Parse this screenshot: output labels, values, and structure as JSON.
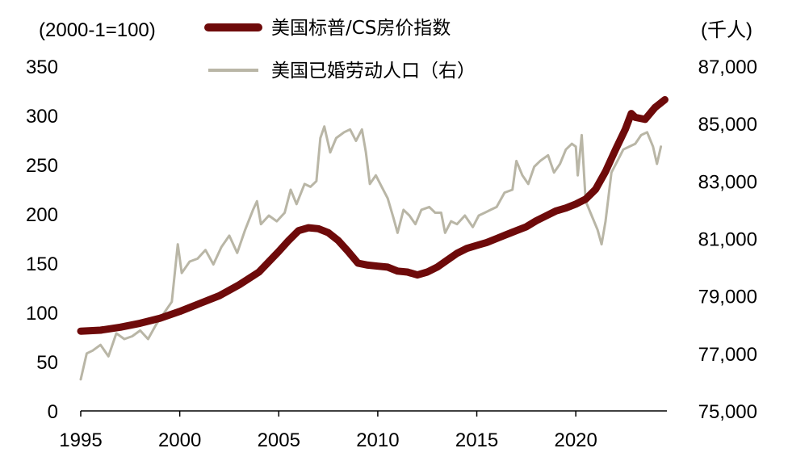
{
  "chart_data": {
    "type": "line",
    "title": "",
    "left_axis_unit": "(2000-1=100)",
    "right_axis_unit": "(千人)",
    "xlim": [
      1995,
      2024.6
    ],
    "ylim_left": [
      0,
      350
    ],
    "ylim_right": [
      75000,
      87000
    ],
    "x_ticks": [
      1995,
      2000,
      2005,
      2010,
      2015,
      2020
    ],
    "x_tick_labels": [
      "1995",
      "2000",
      "2005",
      "2010",
      "2015",
      "2020"
    ],
    "y_left_ticks": [
      0,
      50,
      100,
      150,
      200,
      250,
      300,
      350
    ],
    "y_left_tick_labels": [
      "0",
      "50",
      "100",
      "150",
      "200",
      "250",
      "300",
      "350"
    ],
    "y_right_ticks": [
      75000,
      77000,
      79000,
      81000,
      83000,
      85000,
      87000
    ],
    "y_right_tick_labels": [
      "75,000",
      "77,000",
      "79,000",
      "81,000",
      "83,000",
      "85,000",
      "87,000"
    ],
    "legend_placement": "top-center",
    "series": [
      {
        "name": "美国标普/CS房价指数",
        "axis": "left",
        "color": "#6e0a0a",
        "points": [
          [
            1995.0,
            81
          ],
          [
            1996.0,
            82
          ],
          [
            1997.0,
            85
          ],
          [
            1998.0,
            89
          ],
          [
            1999.0,
            94
          ],
          [
            2000.0,
            101
          ],
          [
            2001.0,
            109
          ],
          [
            2002.0,
            117
          ],
          [
            2003.0,
            128
          ],
          [
            2004.0,
            141
          ],
          [
            2005.0,
            162
          ],
          [
            2005.5,
            173
          ],
          [
            2006.0,
            183
          ],
          [
            2006.5,
            186
          ],
          [
            2007.0,
            185
          ],
          [
            2007.5,
            181
          ],
          [
            2008.0,
            173
          ],
          [
            2008.5,
            162
          ],
          [
            2009.0,
            150
          ],
          [
            2009.5,
            148
          ],
          [
            2010.0,
            147
          ],
          [
            2010.5,
            146
          ],
          [
            2011.0,
            142
          ],
          [
            2011.5,
            141
          ],
          [
            2012.0,
            138
          ],
          [
            2012.5,
            141
          ],
          [
            2013.0,
            146
          ],
          [
            2013.5,
            153
          ],
          [
            2014.0,
            160
          ],
          [
            2014.5,
            165
          ],
          [
            2015.0,
            168
          ],
          [
            2015.5,
            171
          ],
          [
            2016.0,
            175
          ],
          [
            2016.5,
            179
          ],
          [
            2017.0,
            183
          ],
          [
            2017.5,
            187
          ],
          [
            2018.0,
            193
          ],
          [
            2018.5,
            198
          ],
          [
            2019.0,
            203
          ],
          [
            2019.5,
            206
          ],
          [
            2020.0,
            210
          ],
          [
            2020.5,
            215
          ],
          [
            2021.0,
            225
          ],
          [
            2021.5,
            243
          ],
          [
            2022.0,
            265
          ],
          [
            2022.5,
            286
          ],
          [
            2022.8,
            302
          ],
          [
            2023.0,
            298
          ],
          [
            2023.5,
            296
          ],
          [
            2024.0,
            308
          ],
          [
            2024.5,
            316
          ]
        ]
      },
      {
        "name": "美国已婚劳动人口（右）",
        "axis": "right",
        "color": "#b9b6a6",
        "points": [
          [
            1995.0,
            76100
          ],
          [
            1995.3,
            77000
          ],
          [
            1995.6,
            77100
          ],
          [
            1996.0,
            77300
          ],
          [
            1996.4,
            76900
          ],
          [
            1996.8,
            77700
          ],
          [
            1997.2,
            77500
          ],
          [
            1997.6,
            77600
          ],
          [
            1998.0,
            77800
          ],
          [
            1998.4,
            77500
          ],
          [
            1998.8,
            78000
          ],
          [
            1999.2,
            78400
          ],
          [
            1999.6,
            78800
          ],
          [
            1999.9,
            80800
          ],
          [
            2000.1,
            79800
          ],
          [
            2000.5,
            80200
          ],
          [
            2000.9,
            80300
          ],
          [
            2001.3,
            80600
          ],
          [
            2001.7,
            80100
          ],
          [
            2002.1,
            80700
          ],
          [
            2002.5,
            81100
          ],
          [
            2002.9,
            80500
          ],
          [
            2003.3,
            81300
          ],
          [
            2003.7,
            82000
          ],
          [
            2003.9,
            82300
          ],
          [
            2004.1,
            81500
          ],
          [
            2004.5,
            81800
          ],
          [
            2004.9,
            81600
          ],
          [
            2005.3,
            81900
          ],
          [
            2005.6,
            82700
          ],
          [
            2005.9,
            82200
          ],
          [
            2006.3,
            82900
          ],
          [
            2006.6,
            82800
          ],
          [
            2006.9,
            83000
          ],
          [
            2007.1,
            84500
          ],
          [
            2007.3,
            84900
          ],
          [
            2007.6,
            84000
          ],
          [
            2007.9,
            84500
          ],
          [
            2008.3,
            84700
          ],
          [
            2008.6,
            84800
          ],
          [
            2008.9,
            84400
          ],
          [
            2009.2,
            84800
          ],
          [
            2009.4,
            84000
          ],
          [
            2009.6,
            82900
          ],
          [
            2009.9,
            83200
          ],
          [
            2010.2,
            82800
          ],
          [
            2010.5,
            82400
          ],
          [
            2010.8,
            81700
          ],
          [
            2011.0,
            81200
          ],
          [
            2011.3,
            82000
          ],
          [
            2011.6,
            81800
          ],
          [
            2011.9,
            81500
          ],
          [
            2012.2,
            82000
          ],
          [
            2012.6,
            82100
          ],
          [
            2012.9,
            81900
          ],
          [
            2013.2,
            81900
          ],
          [
            2013.4,
            81200
          ],
          [
            2013.7,
            81600
          ],
          [
            2014.0,
            81500
          ],
          [
            2014.4,
            81800
          ],
          [
            2014.8,
            81400
          ],
          [
            2015.1,
            81800
          ],
          [
            2015.4,
            81900
          ],
          [
            2015.7,
            82000
          ],
          [
            2016.0,
            82100
          ],
          [
            2016.4,
            82600
          ],
          [
            2016.8,
            82700
          ],
          [
            2017.0,
            83700
          ],
          [
            2017.3,
            83200
          ],
          [
            2017.6,
            82900
          ],
          [
            2017.9,
            83500
          ],
          [
            2018.2,
            83700
          ],
          [
            2018.6,
            83900
          ],
          [
            2018.9,
            83300
          ],
          [
            2019.2,
            83600
          ],
          [
            2019.5,
            84100
          ],
          [
            2019.8,
            84300
          ],
          [
            2020.0,
            84200
          ],
          [
            2020.1,
            83200
          ],
          [
            2020.3,
            84600
          ],
          [
            2020.5,
            82300
          ],
          [
            2020.8,
            81800
          ],
          [
            2021.1,
            81300
          ],
          [
            2021.3,
            80800
          ],
          [
            2021.5,
            81600
          ],
          [
            2021.8,
            83300
          ],
          [
            2022.1,
            83700
          ],
          [
            2022.4,
            84100
          ],
          [
            2022.7,
            84200
          ],
          [
            2023.0,
            84300
          ],
          [
            2023.3,
            84600
          ],
          [
            2023.6,
            84700
          ],
          [
            2023.9,
            84200
          ],
          [
            2024.1,
            83600
          ],
          [
            2024.3,
            84200
          ]
        ]
      }
    ]
  }
}
